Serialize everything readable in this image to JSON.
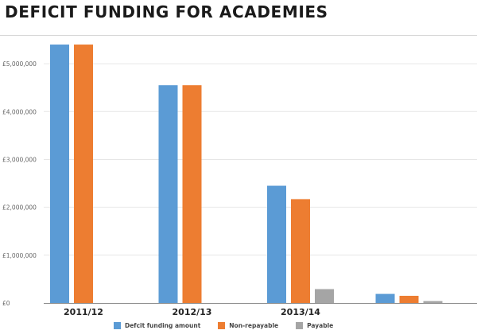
{
  "title": "DEFICIT FUNDING FOR ACADEMIES",
  "colors": {
    "deficit": "#5b9bd5",
    "non_repayable": "#ed7d31",
    "payable": "#a5a5a5",
    "gridline": "#e6e6e6",
    "axis": "#8c8c8c",
    "tick_text": "#666666",
    "category_text": "#222222"
  },
  "chart_data": {
    "type": "bar",
    "title": "DEFICIT FUNDING FOR ACADEMIES",
    "categories": [
      "2011/12",
      "2012/13",
      "2013/14",
      ""
    ],
    "series": [
      {
        "name": "Defcit funding amount",
        "color": "#5b9bd5",
        "values": [
          5400000,
          4550000,
          2450000,
          190000
        ]
      },
      {
        "name": "Non-repayable",
        "color": "#ed7d31",
        "values": [
          5400000,
          4550000,
          2170000,
          150000
        ]
      },
      {
        "name": "Payable",
        "color": "#a5a5a5",
        "values": [
          0,
          0,
          290000,
          40000
        ]
      }
    ],
    "ylim": [
      0,
      5500000
    ],
    "yticks": [
      0,
      1000000,
      2000000,
      3000000,
      4000000,
      5000000
    ],
    "ytick_labels": [
      "£0",
      "£1,000,000",
      "£2,000,000",
      "£3,000,000",
      "£4,000,000",
      "£5,000,000"
    ],
    "grid": true,
    "legend_position": "bottom"
  }
}
